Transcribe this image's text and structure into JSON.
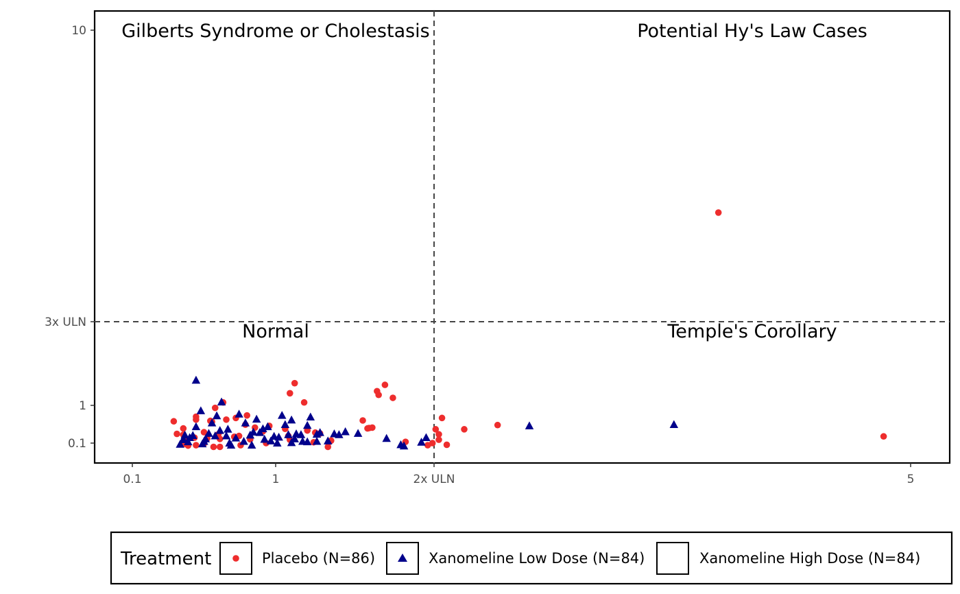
{
  "chart_data": {
    "type": "scatter",
    "title": "",
    "xlabel": "",
    "ylabel": "",
    "x_ticks": [
      {
        "value": 0.1,
        "label": "0.1"
      },
      {
        "value": 1,
        "label": "1"
      },
      {
        "value": 2,
        "label": "2x ULN"
      },
      {
        "value": 5,
        "label": "5"
      }
    ],
    "y_ticks": [
      {
        "value": 0.1,
        "label": "0.1"
      },
      {
        "value": 1,
        "label": "1"
      },
      {
        "value": 3,
        "label": "3x ULN"
      },
      {
        "value": 10,
        "label": "10"
      }
    ],
    "xlim": [
      -0.15,
      5.4
    ],
    "ylim": [
      -0.38,
      10.5
    ],
    "reference_lines": {
      "x": 2,
      "y": 3,
      "style": "dashed"
    },
    "quadrant_labels": {
      "top_left": "Gilberts Syndrome or Cholestasis",
      "top_right": "Potential Hy's Law Cases",
      "bottom_left": "Normal",
      "bottom_right": "Temple's Corollary"
    },
    "grid": false,
    "legend_position": "bottom",
    "legend": {
      "title": "Treatment",
      "entries": [
        {
          "label": "Placebo (N=86)",
          "marker": "circle",
          "color": "#EE2D2D"
        },
        {
          "label": "Xanomeline Low Dose (N=84)",
          "marker": "triangle",
          "color": "#00008B"
        },
        {
          "label": "Xanomeline High Dose (N=84)",
          "marker": "none",
          "color": "#000000"
        }
      ]
    },
    "series": [
      {
        "name": "Placebo (N=86)",
        "marker": "circle",
        "color": "#EE2D2D",
        "points": [
          [
            0.5,
            0.73
          ],
          [
            0.55,
            0.36
          ],
          [
            0.62,
            0.94
          ],
          [
            0.65,
            0.2
          ],
          [
            0.75,
            0.7
          ],
          [
            0.74,
            0.25
          ],
          [
            0.96,
            0.51
          ],
          [
            1.06,
            0.44
          ],
          [
            1.09,
            0.18
          ],
          [
            1.24,
            0.12
          ],
          [
            1.08,
            0.27
          ],
          [
            1.25,
            0.35
          ],
          [
            1.28,
            0.33
          ],
          [
            1.33,
            0.01
          ],
          [
            1.34,
            0.13
          ],
          [
            1.35,
            0.16
          ],
          [
            1.55,
            0.64
          ],
          [
            1.58,
            0.45
          ],
          [
            1.59,
            0.46
          ],
          [
            1.61,
            0.47
          ],
          [
            1.82,
            0.13
          ],
          [
            1.96,
            0.05
          ],
          [
            1.99,
            0.1
          ],
          [
            2.03,
            0.31
          ],
          [
            2.08,
            0.06
          ],
          [
            2.03,
            0.18
          ],
          [
            2.19,
            0.43
          ],
          [
            2.05,
            0.7
          ],
          [
            0.36,
            0.62
          ],
          [
            0.67,
            1.07
          ],
          [
            0.69,
            0.66
          ],
          [
            0.82,
            0.76
          ],
          [
            0.81,
            0.54
          ],
          [
            0.87,
            0.47
          ],
          [
            0.6,
            0.61
          ],
          [
            0.42,
            0.45
          ],
          [
            0.38,
            0.32
          ],
          [
            0.42,
            0.3
          ],
          [
            0.44,
            0.19
          ],
          [
            0.43,
            0.08
          ],
          [
            0.45,
            0.04
          ],
          [
            0.5,
            0.05
          ],
          [
            0.49,
            0.23
          ],
          [
            0.55,
            0.09
          ],
          [
            0.57,
            0.21
          ],
          [
            0.61,
            0.01
          ],
          [
            0.65,
            0.01
          ],
          [
            0.78,
            0.05
          ],
          [
            0.84,
            0.19
          ],
          [
            0.77,
            0.27
          ],
          [
            0.92,
            0.38
          ],
          [
            0.94,
            0.1
          ],
          [
            0.64,
            0.31
          ],
          [
            0.59,
            0.63
          ],
          [
            0.5,
            0.66
          ],
          [
            1.74,
            1.18
          ],
          [
            1.65,
            1.25
          ],
          [
            1.64,
            1.34
          ],
          [
            1.69,
            1.49
          ],
          [
            1.18,
            1.07
          ],
          [
            1.12,
            1.53
          ],
          [
            1.09,
            1.29
          ],
          [
            1.2,
            0.4
          ],
          [
            2.01,
            0.43
          ],
          [
            2.4,
            0.53
          ],
          [
            4.83,
            0.26
          ],
          [
            3.79,
            5.62
          ]
        ]
      },
      {
        "name": "Xanomeline Low Dose (N=84)",
        "marker": "triangle",
        "color": "#00008B",
        "points": [
          [
            0.5,
            1.6
          ],
          [
            0.45,
            0.13
          ],
          [
            0.4,
            0.07
          ],
          [
            0.42,
            0.18
          ],
          [
            0.46,
            0.23
          ],
          [
            0.48,
            0.28
          ],
          [
            0.5,
            0.49
          ],
          [
            0.53,
            0.87
          ],
          [
            0.55,
            0.14
          ],
          [
            0.58,
            0.33
          ],
          [
            0.6,
            0.58
          ],
          [
            0.62,
            0.27
          ],
          [
            0.63,
            0.75
          ],
          [
            0.66,
            1.08
          ],
          [
            0.69,
            0.27
          ],
          [
            0.7,
            0.43
          ],
          [
            0.72,
            0.05
          ],
          [
            0.75,
            0.22
          ],
          [
            0.77,
            0.79
          ],
          [
            0.81,
            0.58
          ],
          [
            0.84,
            0.29
          ],
          [
            0.86,
            0.36
          ],
          [
            0.88,
            0.67
          ],
          [
            0.92,
            0.44
          ],
          [
            0.95,
            0.49
          ],
          [
            0.97,
            0.15
          ],
          [
            0.99,
            0.26
          ],
          [
            1.01,
            0.1
          ],
          [
            1.04,
            0.76
          ],
          [
            1.06,
            0.54
          ],
          [
            1.08,
            0.3
          ],
          [
            1.1,
            0.11
          ],
          [
            1.13,
            0.32
          ],
          [
            1.17,
            0.14
          ],
          [
            1.2,
            0.52
          ],
          [
            1.22,
            0.72
          ],
          [
            1.26,
            0.31
          ],
          [
            1.33,
            0.15
          ],
          [
            1.4,
            0.3
          ],
          [
            1.44,
            0.37
          ],
          [
            1.52,
            0.33
          ],
          [
            1.7,
            0.21
          ],
          [
            1.79,
            0.06
          ],
          [
            1.81,
            0.03
          ],
          [
            1.92,
            0.12
          ],
          [
            1.95,
            0.23
          ],
          [
            1.1,
            0.65
          ],
          [
            1.2,
            0.13
          ],
          [
            1.26,
            0.14
          ],
          [
            0.42,
            0.19
          ],
          [
            0.43,
            0.29
          ],
          [
            0.54,
            0.08
          ],
          [
            0.56,
            0.2
          ],
          [
            0.65,
            0.4
          ],
          [
            0.71,
            0.1
          ],
          [
            0.8,
            0.14
          ],
          [
            0.85,
            0.05
          ],
          [
            0.9,
            0.35
          ],
          [
            0.93,
            0.19
          ],
          [
            1.02,
            0.24
          ],
          [
            1.12,
            0.2
          ],
          [
            1.16,
            0.3
          ],
          [
            1.28,
            0.35
          ],
          [
            1.37,
            0.32
          ],
          [
            2.6,
            0.51
          ],
          [
            3.51,
            0.54
          ]
        ]
      }
    ]
  }
}
